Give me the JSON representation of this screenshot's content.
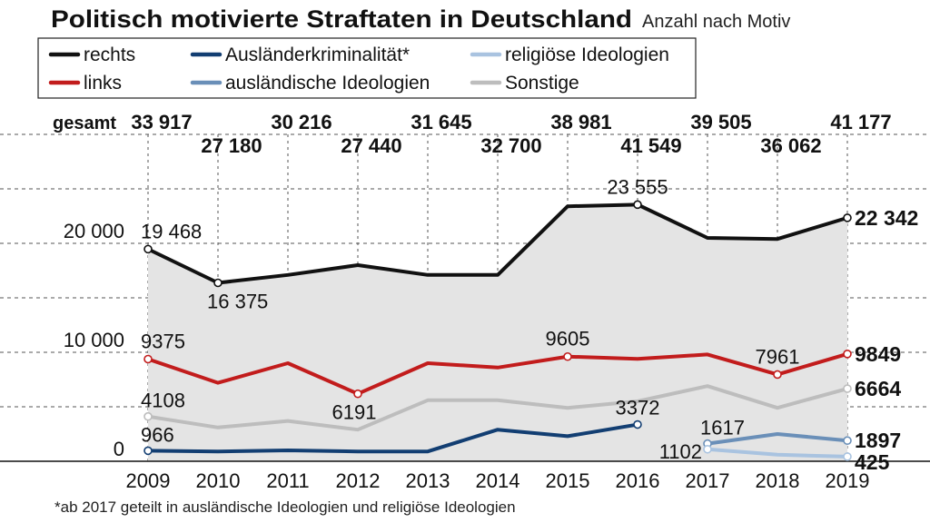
{
  "header": {
    "title": "Politisch motivierte Straftaten in Deutschland",
    "subtitle": "Anzahl nach Motiv"
  },
  "footnote": "*ab 2017 geteilt in ausländische Ideologien und religiöse Ideologien",
  "chart_data": {
    "type": "line",
    "x": [
      2009,
      2010,
      2011,
      2012,
      2013,
      2014,
      2015,
      2016,
      2017,
      2018,
      2019
    ],
    "y_ticks": [
      {
        "value": 0,
        "label": "0"
      },
      {
        "value": 10000,
        "label": "10 000"
      },
      {
        "value": 20000,
        "label": "20 000"
      }
    ],
    "ylim": [
      0,
      30000
    ],
    "grid": "horizontal-dashed",
    "totals_label": "gesamt",
    "totals": [
      {
        "year": 2009,
        "label": "33 917"
      },
      {
        "year": 2010,
        "label": "27 180"
      },
      {
        "year": 2011,
        "label": "30 216"
      },
      {
        "year": 2012,
        "label": "27 440"
      },
      {
        "year": 2013,
        "label": "31 645"
      },
      {
        "year": 2014,
        "label": "32 700"
      },
      {
        "year": 2015,
        "label": "38 981"
      },
      {
        "year": 2016,
        "label": "41 549"
      },
      {
        "year": 2017,
        "label": "39 505"
      },
      {
        "year": 2018,
        "label": "36 062"
      },
      {
        "year": 2019,
        "label": "41 177"
      }
    ],
    "series": [
      {
        "key": "rechts",
        "name": "rechts",
        "color": "#111111",
        "fill_below": "#e4e4e4",
        "x": [
          2009,
          2010,
          2011,
          2012,
          2013,
          2014,
          2015,
          2016,
          2017,
          2018,
          2019
        ],
        "values": [
          19468,
          16375,
          17100,
          18000,
          17100,
          17100,
          23400,
          23555,
          20500,
          20400,
          22342
        ]
      },
      {
        "key": "links",
        "name": "links",
        "color": "#c21c1c",
        "x": [
          2009,
          2010,
          2011,
          2012,
          2013,
          2014,
          2015,
          2016,
          2017,
          2018,
          2019
        ],
        "values": [
          9375,
          7200,
          9000,
          6191,
          9000,
          8600,
          9605,
          9400,
          9800,
          7961,
          9849
        ]
      },
      {
        "key": "auslaenderkriminalitaet",
        "name": "Ausländerkriminalität*",
        "color": "#123e72",
        "x": [
          2009,
          2010,
          2011,
          2012,
          2013,
          2014,
          2015,
          2016
        ],
        "values": [
          966,
          900,
          1000,
          900,
          900,
          2900,
          2300,
          3372
        ]
      },
      {
        "key": "religioese",
        "name": "religiöse Ideologien",
        "color": "#a9c3e0",
        "x": [
          2017,
          2018,
          2019
        ],
        "values": [
          1102,
          600,
          425
        ]
      },
      {
        "key": "auslaendische",
        "name": "ausländische Ideologien",
        "color": "#6a8fb8",
        "x": [
          2017,
          2018,
          2019
        ],
        "values": [
          1617,
          2500,
          1897
        ]
      },
      {
        "key": "sonstige",
        "name": "Sonstige",
        "color": "#bdbdbd",
        "x": [
          2009,
          2010,
          2011,
          2012,
          2013,
          2014,
          2015,
          2016,
          2017,
          2018,
          2019
        ],
        "values": [
          4108,
          3100,
          3700,
          2900,
          5600,
          5600,
          4900,
          5500,
          6900,
          4900,
          6664
        ]
      }
    ],
    "point_labels": [
      {
        "series": "rechts",
        "year": 2009,
        "label": "19 468"
      },
      {
        "series": "rechts",
        "year": 2010,
        "label": "16 375"
      },
      {
        "series": "rechts",
        "year": 2016,
        "label": "23 555"
      },
      {
        "series": "rechts",
        "year": 2019,
        "label": "22 342"
      },
      {
        "series": "links",
        "year": 2009,
        "label": "9375"
      },
      {
        "series": "links",
        "year": 2012,
        "label": "6191"
      },
      {
        "series": "links",
        "year": 2015,
        "label": "9605"
      },
      {
        "series": "links",
        "year": 2018,
        "label": "7961"
      },
      {
        "series": "links",
        "year": 2019,
        "label": "9849"
      },
      {
        "series": "sonstige",
        "year": 2009,
        "label": "4108"
      },
      {
        "series": "sonstige",
        "year": 2019,
        "label": "6664"
      },
      {
        "series": "auslaenderkriminalitaet",
        "year": 2009,
        "label": "966"
      },
      {
        "series": "auslaenderkriminalitaet",
        "year": 2016,
        "label": "3372"
      },
      {
        "series": "auslaendische",
        "year": 2017,
        "label": "1617"
      },
      {
        "series": "auslaendische",
        "year": 2019,
        "label": "1897"
      },
      {
        "series": "religioese",
        "year": 2017,
        "label": "1102"
      },
      {
        "series": "religioese",
        "year": 2019,
        "label": "425"
      }
    ]
  }
}
